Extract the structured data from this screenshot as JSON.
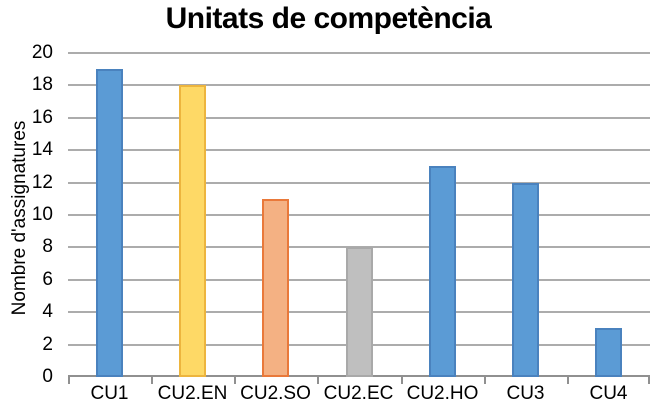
{
  "chart_data": {
    "type": "bar",
    "title": "Unitats de competència",
    "ylabel": "Nombre d'assignatures",
    "xlabel": "",
    "categories": [
      "CU1",
      "CU2.EN",
      "CU2.SO",
      "CU2.EC",
      "CU2.HO",
      "CU3",
      "CU4"
    ],
    "values": [
      19,
      18,
      11,
      8,
      13,
      12,
      3
    ],
    "ylim": [
      0,
      20
    ],
    "ytick_step": 2,
    "ytick_labels": [
      "0",
      "2",
      "4",
      "6",
      "8",
      "10",
      "12",
      "14",
      "16",
      "18",
      "20"
    ],
    "grid": true,
    "legend": false,
    "bar_colors": [
      {
        "fill": "#5B9BD5",
        "border": "#4A82BE"
      },
      {
        "fill": "#FED966",
        "border": "#EDB53E"
      },
      {
        "fill": "#F4B183",
        "border": "#E9793A"
      },
      {
        "fill": "#BFBFBF",
        "border": "#A9A9A9"
      },
      {
        "fill": "#5B9BD5",
        "border": "#4A82BE"
      },
      {
        "fill": "#5B9BD5",
        "border": "#4A82BE"
      },
      {
        "fill": "#5B9BD5",
        "border": "#4A82BE"
      }
    ],
    "colors": {
      "text": "#000000",
      "gridline": "#ACACAC",
      "axis": "#909090",
      "background": "#FFFFFF"
    }
  }
}
